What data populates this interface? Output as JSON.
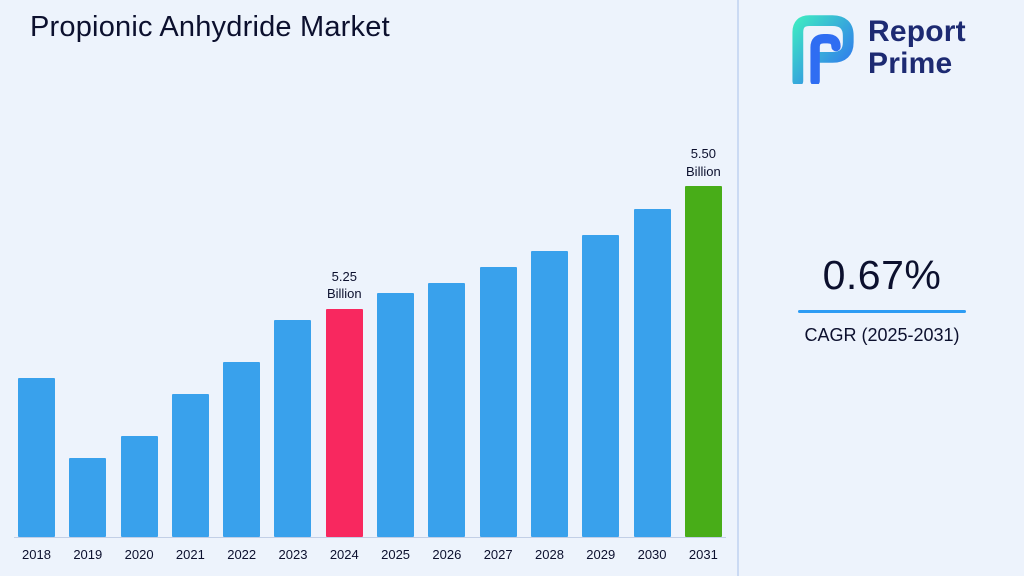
{
  "page": {
    "title": "Propionic Anhydride Market"
  },
  "logo": {
    "line1": "Report",
    "line2": "Prime"
  },
  "cagr": {
    "value": "0.67%",
    "label": "CAGR (2025-2031)"
  },
  "colors": {
    "background": "#edf3fc",
    "title_text": "#0c102e",
    "logo_text": "#1d2a72",
    "accent_blue": "#2d9cf4",
    "divider": "#cbdaf3",
    "baseline": "#c2cfe6"
  },
  "chart_data": {
    "type": "bar",
    "title": "Propionic Anhydride Market",
    "unit": "Billion",
    "categories": [
      "2018",
      "2019",
      "2020",
      "2021",
      "2022",
      "2023",
      "2024",
      "2025",
      "2026",
      "2027",
      "2028",
      "2029",
      "2030",
      "2031"
    ],
    "values": [
      5.12,
      4.97,
      5.01,
      5.09,
      5.15,
      5.23,
      5.25,
      5.28,
      5.3,
      5.33,
      5.36,
      5.39,
      5.44,
      5.5
    ],
    "ylim": [
      4.82,
      5.56
    ],
    "grid": false,
    "legend": false,
    "colors": {
      "default": "#39a1ec",
      "highlights": {
        "2024": "#f8285f",
        "2031": "#48ad18"
      }
    },
    "annotations": [
      {
        "x": "2024",
        "text": "5.25\nBillion"
      },
      {
        "x": "2031",
        "text": "5.50\nBillion"
      }
    ]
  }
}
